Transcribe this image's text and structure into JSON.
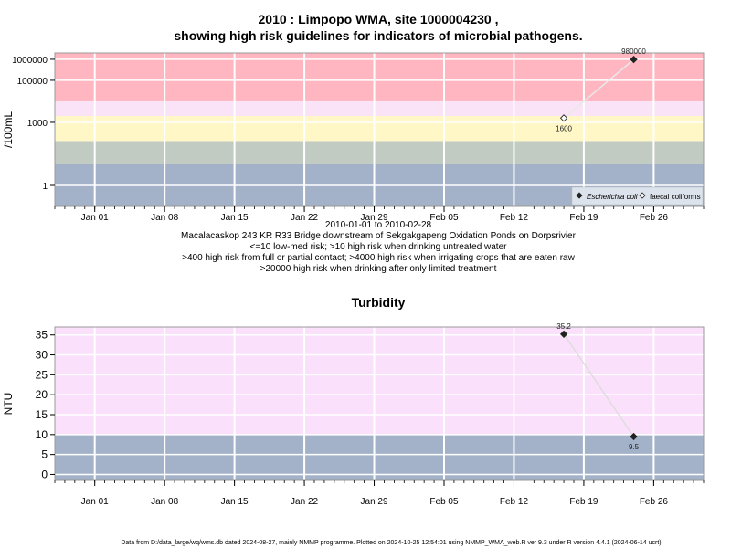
{
  "chart_data": [
    {
      "type": "scatter",
      "title_line1": "2010 : Limpopo WMA, site 1000004230 ,",
      "title_line2": "showing high risk guidelines for indicators of microbial pathogens.",
      "ylabel": "/100mL",
      "yscale": "log",
      "ylim": [
        0.1,
        2000000
      ],
      "yticks": [
        1,
        1000,
        100000,
        1000000
      ],
      "ytick_labels": [
        "1",
        "1000",
        "100000",
        "1000000"
      ],
      "xlim": [
        "2009-12-28",
        "2010-03-03"
      ],
      "xticks": [
        "2010-01-01",
        "2010-01-08",
        "2010-01-15",
        "2010-01-22",
        "2010-01-29",
        "2010-02-05",
        "2010-02-12",
        "2010-02-19",
        "2010-02-26"
      ],
      "xtick_labels": [
        "Jan 01",
        "Jan 08",
        "Jan 15",
        "Jan 22",
        "Jan 29",
        "Feb 05",
        "Feb 12",
        "Feb 19",
        "Feb 26"
      ],
      "bands": [
        {
          "from": 0.1,
          "to": 10,
          "color": "#a3b2c9"
        },
        {
          "from": 10,
          "to": 130,
          "color": "#c2cbc2"
        },
        {
          "from": 130,
          "to": 2000,
          "color": "#fff7c6"
        },
        {
          "from": 2000,
          "to": 10000,
          "color": "#fbe3f7"
        },
        {
          "from": 10000,
          "to": 2000000,
          "color": "#ffb6c1"
        }
      ],
      "series": [
        {
          "name": "Escherichia coli",
          "marker": "filled-diamond",
          "x": [
            "2010-02-24"
          ],
          "y": [
            980000
          ],
          "labels": [
            "980000"
          ]
        },
        {
          "name": "faecal coliforms",
          "marker": "open-diamond",
          "x": [
            "2010-02-17"
          ],
          "y": [
            1600
          ],
          "labels": [
            "1600"
          ]
        }
      ],
      "notes": [
        "2010-01-01 to 2010-02-28",
        "Macalacaskop 243 KR R33 Bridge downstream of Sekgakgapeng Oxidation Ponds on Dorpsrivier",
        "<=10 low-med risk; >10 high risk when drinking untreated water",
        ">400 high risk from full or partial contact; >4000 high risk when irrigating crops that are eaten raw",
        ">20000 high risk when drinking after only limited treatment"
      ]
    },
    {
      "type": "scatter",
      "title": "Turbidity",
      "ylabel": "NTU",
      "ylim": [
        -1.5,
        37
      ],
      "yticks": [
        0,
        5,
        10,
        15,
        20,
        25,
        30,
        35
      ],
      "ytick_labels": [
        "0",
        "5",
        "10",
        "15",
        "20",
        "25",
        "30",
        "35"
      ],
      "xlim": [
        "2009-12-28",
        "2010-03-03"
      ],
      "xticks": [
        "2010-01-01",
        "2010-01-08",
        "2010-01-15",
        "2010-01-22",
        "2010-01-29",
        "2010-02-05",
        "2010-02-12",
        "2010-02-19",
        "2010-02-26"
      ],
      "xtick_labels": [
        "Jan 01",
        "Jan 08",
        "Jan 15",
        "Jan 22",
        "Jan 29",
        "Feb 05",
        "Feb 12",
        "Feb 19",
        "Feb 26"
      ],
      "bands": [
        {
          "from": -1.5,
          "to": 10,
          "color": "#a3b2c9"
        },
        {
          "from": 10,
          "to": 37,
          "color": "#fbe0fc"
        }
      ],
      "series": [
        {
          "name": "",
          "marker": "filled-diamond",
          "x": [
            "2010-02-17",
            "2010-02-24"
          ],
          "y": [
            35.2,
            9.5
          ],
          "labels": [
            "35.2",
            "9.5"
          ]
        }
      ]
    }
  ],
  "footer": "Data from D:/data_large/wq/wms.db dated 2024-08-27, mainly NMMP programme. Plotted on 2024-10-25 12:54:01 using NMMP_WMA_web.R ver 9.3 under R version 4.4.1 (2024-06-14 ucrt)"
}
